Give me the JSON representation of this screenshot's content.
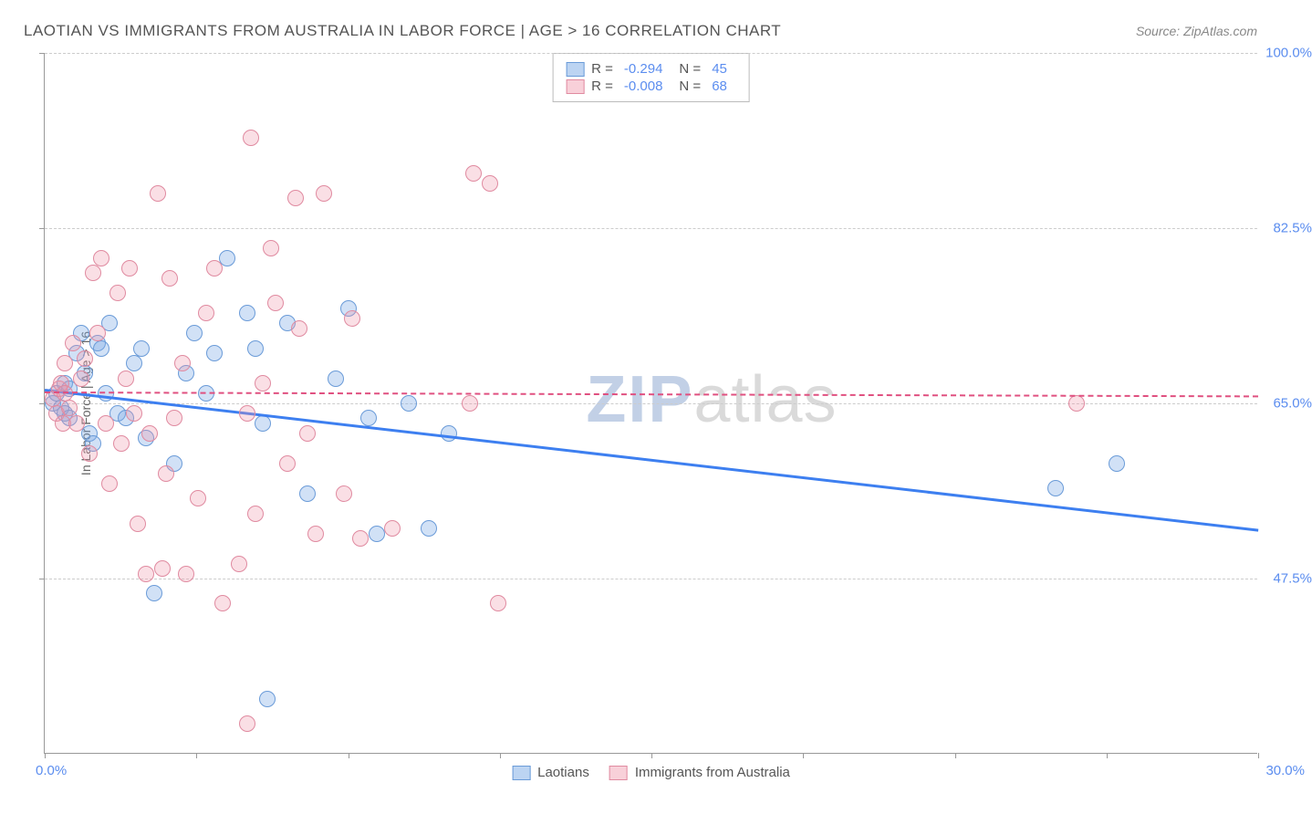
{
  "title": "LAOTIAN VS IMMIGRANTS FROM AUSTRALIA IN LABOR FORCE | AGE > 16 CORRELATION CHART",
  "source": "Source: ZipAtlas.com",
  "watermark": {
    "bold": "ZIP",
    "light": "atlas"
  },
  "chart": {
    "type": "scatter",
    "background_color": "#ffffff",
    "grid_color": "#cccccc",
    "axis_color": "#999999",
    "label_color": "#666666",
    "value_color": "#5b8def",
    "xlim": [
      0,
      30
    ],
    "ylim": [
      30,
      100
    ],
    "x_axis_label_min": "0.0%",
    "x_axis_label_max": "30.0%",
    "y_axis_label": "In Labor Force | Age > 16",
    "y_ticks": [
      47.5,
      65.0,
      82.5,
      100.0
    ],
    "y_tick_labels": [
      "47.5%",
      "65.0%",
      "82.5%",
      "100.0%"
    ],
    "x_tick_positions": [
      0,
      3.75,
      7.5,
      11.25,
      15,
      18.75,
      22.5,
      26.25,
      30
    ],
    "marker_radius": 9,
    "series": [
      {
        "name": "Laotians",
        "color_fill": "rgba(122,170,230,0.35)",
        "color_stroke": "#6a9bd8",
        "R": "-0.294",
        "N": "45",
        "trend": {
          "x1": 0,
          "y1": 66.5,
          "x2": 30,
          "y2": 52.5,
          "color": "#3d7ff0",
          "width": 2.5,
          "dash": "none"
        },
        "points": [
          [
            0.2,
            65
          ],
          [
            0.3,
            66
          ],
          [
            0.4,
            64.5
          ],
          [
            0.5,
            67
          ],
          [
            0.5,
            64
          ],
          [
            0.6,
            66.5
          ],
          [
            0.6,
            63.5
          ],
          [
            0.8,
            70
          ],
          [
            0.9,
            72
          ],
          [
            1.0,
            68
          ],
          [
            1.1,
            62
          ],
          [
            1.2,
            61
          ],
          [
            1.3,
            71
          ],
          [
            1.4,
            70.5
          ],
          [
            1.5,
            66
          ],
          [
            1.6,
            73
          ],
          [
            1.8,
            64
          ],
          [
            2.0,
            63.5
          ],
          [
            2.2,
            69
          ],
          [
            2.4,
            70.5
          ],
          [
            2.5,
            61.5
          ],
          [
            2.7,
            46
          ],
          [
            3.2,
            59
          ],
          [
            3.5,
            68
          ],
          [
            3.7,
            72
          ],
          [
            4.0,
            66
          ],
          [
            4.2,
            70
          ],
          [
            4.5,
            79.5
          ],
          [
            5.0,
            74
          ],
          [
            5.2,
            70.5
          ],
          [
            5.4,
            63
          ],
          [
            5.5,
            35.5
          ],
          [
            6.0,
            73
          ],
          [
            6.5,
            56
          ],
          [
            7.2,
            67.5
          ],
          [
            7.5,
            74.5
          ],
          [
            8.0,
            63.5
          ],
          [
            8.2,
            52
          ],
          [
            9.0,
            65
          ],
          [
            9.5,
            52.5
          ],
          [
            10.0,
            62
          ],
          [
            25.0,
            56.5
          ],
          [
            26.5,
            59
          ]
        ]
      },
      {
        "name": "Immigrants from Australia",
        "color_fill": "rgba(240,150,170,0.30)",
        "color_stroke": "#e08aa0",
        "R": "-0.008",
        "N": "68",
        "trend": {
          "x1": 0,
          "y1": 66.2,
          "x2": 30,
          "y2": 65.8,
          "color": "#e05080",
          "width": 2,
          "dash": "4,4"
        },
        "points": [
          [
            0.2,
            65.5
          ],
          [
            0.3,
            64
          ],
          [
            0.35,
            66.5
          ],
          [
            0.4,
            67
          ],
          [
            0.45,
            63
          ],
          [
            0.5,
            66
          ],
          [
            0.5,
            69
          ],
          [
            0.6,
            64.5
          ],
          [
            0.7,
            71
          ],
          [
            0.8,
            63
          ],
          [
            0.9,
            67.5
          ],
          [
            1.0,
            69.5
          ],
          [
            1.1,
            60
          ],
          [
            1.2,
            78
          ],
          [
            1.3,
            72
          ],
          [
            1.4,
            79.5
          ],
          [
            1.5,
            63
          ],
          [
            1.6,
            57
          ],
          [
            1.8,
            76
          ],
          [
            1.9,
            61
          ],
          [
            2.0,
            67.5
          ],
          [
            2.1,
            78.5
          ],
          [
            2.2,
            64
          ],
          [
            2.3,
            53
          ],
          [
            2.5,
            48
          ],
          [
            2.6,
            62
          ],
          [
            2.8,
            86
          ],
          [
            2.9,
            48.5
          ],
          [
            3.0,
            58
          ],
          [
            3.1,
            77.5
          ],
          [
            3.2,
            63.5
          ],
          [
            3.4,
            69
          ],
          [
            3.5,
            48
          ],
          [
            3.8,
            55.5
          ],
          [
            4.0,
            74
          ],
          [
            4.2,
            78.5
          ],
          [
            4.4,
            45
          ],
          [
            4.8,
            49
          ],
          [
            5.0,
            33
          ],
          [
            5.0,
            64
          ],
          [
            5.1,
            91.5
          ],
          [
            5.2,
            54
          ],
          [
            5.4,
            67
          ],
          [
            5.6,
            80.5
          ],
          [
            5.7,
            75
          ],
          [
            6.0,
            59
          ],
          [
            6.2,
            85.5
          ],
          [
            6.3,
            72.5
          ],
          [
            6.5,
            62
          ],
          [
            6.7,
            52
          ],
          [
            6.9,
            86
          ],
          [
            7.4,
            56
          ],
          [
            7.6,
            73.5
          ],
          [
            7.8,
            51.5
          ],
          [
            8.6,
            52.5
          ],
          [
            10.5,
            65
          ],
          [
            10.6,
            88
          ],
          [
            11.0,
            87
          ],
          [
            11.2,
            45
          ],
          [
            25.5,
            65
          ]
        ]
      }
    ],
    "legend_bottom": [
      {
        "label": "Laotians",
        "swatch": "s1"
      },
      {
        "label": "Immigrants from Australia",
        "swatch": "s2"
      }
    ]
  }
}
